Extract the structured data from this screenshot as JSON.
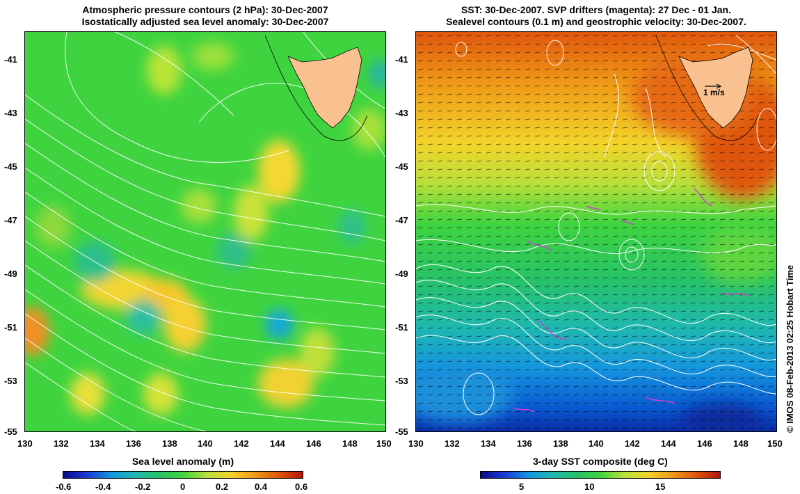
{
  "left_panel": {
    "title_line1": "Atmospheric pressure contours (2 hPa): 30-Dec-2007",
    "title_line2": "Isostatically adjusted sea level anomaly: 30-Dec-2007",
    "colorbar_title": "Sea level anomaly (m)",
    "colorbar_ticks": [
      "-0.6",
      "-0.4",
      "-0.2",
      "0",
      "0.2",
      "0.4",
      "0.6"
    ]
  },
  "right_panel": {
    "title_line1": "SST: 30-Dec-2007. SVP drifters (magenta): 27 Dec - 01 Jan.",
    "title_line2": "Sealevel contours (0.1 m) and geostrophic velocity: 30-Dec-2007.",
    "colorbar_title": "3-day SST composite (deg C)",
    "colorbar_ticks": [
      "5",
      "10",
      "15"
    ],
    "velocity_scale_label": "1 m/s"
  },
  "axes": {
    "lat_labels": [
      "-41",
      "-43",
      "-45",
      "-47",
      "-49",
      "-51",
      "-53",
      "-55"
    ],
    "lon_labels": [
      "130",
      "132",
      "134",
      "136",
      "138",
      "140",
      "142",
      "144",
      "146",
      "148",
      "150"
    ]
  },
  "credit": "© IMOS 08-Feb-2013 02:25 Hobart Time",
  "colors": {
    "land": "#f9c190",
    "contour": "#ffffff",
    "drifter": "#d040d0",
    "sla_background": "#3fd43f",
    "sst_warm": "#e0560c",
    "sst_cold": "#0a5ad2"
  }
}
